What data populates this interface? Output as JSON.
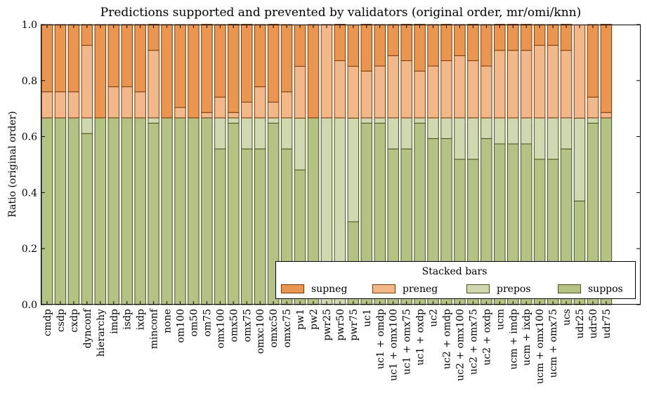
{
  "chart_data": {
    "type": "bar",
    "stacked": true,
    "title": "Predictions supported and prevented by validators (original order, mr/omi/knn)",
    "xlabel": "",
    "ylabel": "Ratio (original order)",
    "ylim": [
      0,
      1.0
    ],
    "yticks": [
      "0.0",
      "0.2",
      "0.4",
      "0.6",
      "0.8",
      "1.0"
    ],
    "legend": {
      "title": "Stacked bars",
      "placement": "bottom-right",
      "entries": [
        "supneg",
        "preneg",
        "prepos",
        "suppos"
      ]
    },
    "colors": {
      "supneg": "#ea9651",
      "preneg": "#f2b88a",
      "prepos": "#d0d8b0",
      "suppos": "#b4c283"
    },
    "categories": [
      "cmdp",
      "csdp",
      "cxdp",
      "dynconf",
      "hierarchy",
      "imdp",
      "isdp",
      "ixdp",
      "minconf",
      "none",
      "om100",
      "om50",
      "om75",
      "omx100",
      "omx50",
      "omx75",
      "omxc100",
      "omxc50",
      "omxc75",
      "pw1",
      "pw2",
      "pwr25",
      "pwr50",
      "pwr75",
      "uc1",
      "uc1 + omdp",
      "uc1 + omx100",
      "uc1 + omx75",
      "uc1 + oxdp",
      "uc2",
      "uc2 + omdp",
      "uc2 + omx100",
      "uc2 + omx75",
      "uc2 + oxdp",
      "ucm",
      "ucm + imdp",
      "ucm + ixdp",
      "ucm + omx100",
      "ucm + omx75",
      "ucs",
      "udr25",
      "udr50",
      "udr75"
    ],
    "series": [
      {
        "name": "suppos",
        "values": [
          0.667,
          0.667,
          0.667,
          0.611,
          0.667,
          0.667,
          0.667,
          0.667,
          0.648,
          0.667,
          0.667,
          0.667,
          0.667,
          0.556,
          0.648,
          0.556,
          0.556,
          0.648,
          0.556,
          0.481,
          0.667,
          0.0,
          0.0,
          0.296,
          0.648,
          0.648,
          0.556,
          0.556,
          0.648,
          0.593,
          0.593,
          0.519,
          0.519,
          0.593,
          0.574,
          0.574,
          0.574,
          0.519,
          0.519,
          0.556,
          0.37,
          0.648,
          0.667
        ]
      },
      {
        "name": "prepos",
        "values": [
          0,
          0,
          0,
          0.056,
          0,
          0,
          0,
          0,
          0.019,
          0,
          0,
          0,
          0,
          0.111,
          0.019,
          0.111,
          0.111,
          0.019,
          0.111,
          0.185,
          0,
          0.667,
          0.667,
          0.37,
          0.019,
          0.019,
          0.111,
          0.111,
          0.019,
          0.074,
          0.074,
          0.148,
          0.148,
          0.074,
          0.093,
          0.093,
          0.093,
          0.148,
          0.148,
          0.111,
          0.296,
          0.019,
          0
        ]
      },
      {
        "name": "preneg",
        "values": [
          0.093,
          0.093,
          0.093,
          0.259,
          0,
          0.111,
          0.111,
          0.093,
          0.241,
          0,
          0.037,
          0,
          0.019,
          0.074,
          0.019,
          0.056,
          0.111,
          0.056,
          0.093,
          0.185,
          0,
          0.333,
          0.204,
          0.185,
          0.167,
          0.185,
          0.222,
          0.204,
          0.167,
          0.185,
          0.204,
          0.222,
          0.204,
          0.185,
          0.241,
          0.241,
          0.241,
          0.259,
          0.259,
          0.241,
          0.333,
          0.074,
          0.019
        ]
      },
      {
        "name": "supneg",
        "values": [
          0.24,
          0.24,
          0.24,
          0.074,
          0.333,
          0.222,
          0.222,
          0.24,
          0.093,
          0.333,
          0.296,
          0.333,
          0.315,
          0.259,
          0.315,
          0.278,
          0.222,
          0.278,
          0.24,
          0.148,
          0.333,
          0.0,
          0.13,
          0.148,
          0.167,
          0.148,
          0.111,
          0.13,
          0.167,
          0.148,
          0.13,
          0.111,
          0.13,
          0.148,
          0.093,
          0.093,
          0.093,
          0.074,
          0.074,
          0.093,
          0.0,
          0.259,
          0.315
        ]
      }
    ]
  }
}
